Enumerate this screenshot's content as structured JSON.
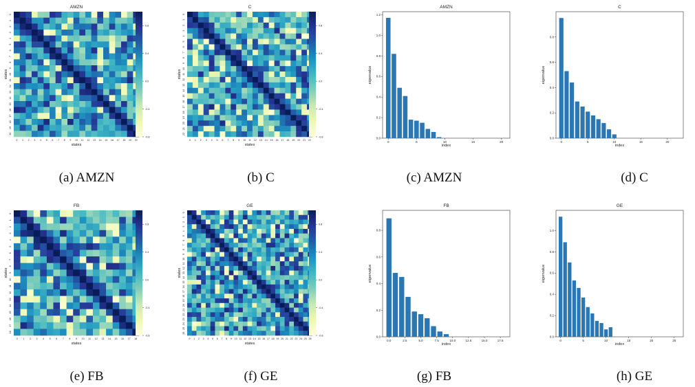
{
  "colors": {
    "bar": "#2a77b4",
    "axis": "#333333",
    "cmap": [
      "#ffffd9",
      "#edf8b1",
      "#c7e9b4",
      "#7fcdbb",
      "#41b6c4",
      "#1d91c0",
      "#225ea8",
      "#253494",
      "#081d58"
    ]
  },
  "heatmap_colorbar_ticks": [
    "0.8",
    "0.4",
    "0.0",
    "-0.4",
    "-0.8"
  ],
  "chart_data": [
    {
      "id": "a",
      "type": "heatmap",
      "title": "AMZN",
      "caption": "(a) AMZN",
      "xlabel": "states",
      "ylabel": "states",
      "n": 21,
      "xticks": [
        "0",
        "1",
        "2",
        "3",
        "4",
        "5",
        "6",
        "7",
        "8",
        "9",
        "10",
        "11",
        "12",
        "13",
        "14",
        "15",
        "16",
        "17",
        "18",
        "19",
        "20"
      ],
      "yticks": [
        "0",
        "1",
        "2",
        "3",
        "4",
        "5",
        "6",
        "7",
        "8",
        "9",
        "10",
        "11",
        "12",
        "13",
        "14",
        "15",
        "16",
        "17",
        "18",
        "19",
        "20"
      ],
      "vmin": -0.8,
      "vmax": 1.0,
      "seed": 11
    },
    {
      "id": "b",
      "type": "heatmap",
      "title": "C",
      "caption": "(b) C",
      "xlabel": "states",
      "ylabel": "states",
      "n": 23,
      "xticks": [
        "0",
        "1",
        "2",
        "3",
        "4",
        "5",
        "6",
        "7",
        "8",
        "9",
        "10",
        "11",
        "12",
        "13",
        "14",
        "15",
        "16",
        "17",
        "18",
        "19",
        "20",
        "21",
        "22"
      ],
      "yticks": [
        "0",
        "1",
        "2",
        "3",
        "4",
        "5",
        "6",
        "7",
        "8",
        "9",
        "10",
        "11",
        "12",
        "13",
        "14",
        "15",
        "16",
        "17",
        "18",
        "19",
        "20",
        "21",
        "22"
      ],
      "vmin": -0.8,
      "vmax": 1.0,
      "seed": 23
    },
    {
      "id": "c",
      "type": "bar",
      "title": "AMZN",
      "caption": "(c) AMZN",
      "xlabel": "index",
      "ylabel": "eigenvalue",
      "values": [
        1.17,
        0.82,
        0.49,
        0.41,
        0.18,
        0.17,
        0.15,
        0.09,
        0.06,
        0.01,
        0.0
      ],
      "xlim": [
        -1,
        21.5
      ],
      "ylim": [
        0,
        1.23
      ],
      "xticks": [
        0,
        5,
        10,
        15,
        20
      ],
      "xtick_labels": [
        "0",
        "5",
        "10",
        "15",
        "20"
      ],
      "yticks": [
        0,
        0.2,
        0.4,
        0.6,
        0.8,
        1.0,
        1.2
      ],
      "ytick_labels": [
        "0.0",
        "0.2",
        "0.4",
        "0.6",
        "0.8",
        "1.0",
        "1.2"
      ]
    },
    {
      "id": "d",
      "type": "bar",
      "title": "C",
      "caption": "(d) C",
      "xlabel": "index",
      "ylabel": "eigenvalue",
      "values": [
        0.95,
        0.53,
        0.44,
        0.29,
        0.25,
        0.21,
        0.18,
        0.15,
        0.12,
        0.07,
        0.03
      ],
      "xlim": [
        -1,
        23
      ],
      "ylim": [
        0,
        1.0
      ],
      "xticks": [
        0,
        5,
        10,
        15,
        20
      ],
      "xtick_labels": [
        "0",
        "5",
        "10",
        "15",
        "20"
      ],
      "yticks": [
        0,
        0.2,
        0.4,
        0.6,
        0.8
      ],
      "ytick_labels": [
        "0.0",
        "0.2",
        "0.4",
        "0.6",
        "0.8"
      ]
    },
    {
      "id": "e",
      "type": "heatmap",
      "title": "FB",
      "caption": "(e) FB",
      "xlabel": "states",
      "ylabel": "states",
      "n": 19,
      "xticks": [
        "0",
        "1",
        "2",
        "3",
        "4",
        "5",
        "6",
        "7",
        "8",
        "9",
        "10",
        "11",
        "12",
        "13",
        "14",
        "15",
        "16",
        "17",
        "18"
      ],
      "yticks": [
        "0",
        "1",
        "2",
        "3",
        "4",
        "5",
        "6",
        "7",
        "8",
        "9",
        "10",
        "11",
        "12",
        "13",
        "14",
        "15",
        "16",
        "17",
        "18"
      ],
      "vmin": -0.8,
      "vmax": 1.0,
      "seed": 37
    },
    {
      "id": "f",
      "type": "heatmap",
      "title": "GE",
      "caption": "(f) GE",
      "xlabel": "states",
      "ylabel": "states",
      "n": 27,
      "xticks": [
        "0",
        "1",
        "2",
        "3",
        "4",
        "5",
        "6",
        "7",
        "8",
        "9",
        "10",
        "11",
        "12",
        "13",
        "14",
        "15",
        "16",
        "17",
        "18",
        "19",
        "20",
        "21",
        "22",
        "23",
        "24",
        "25",
        "26"
      ],
      "yticks": [
        "0",
        "1",
        "2",
        "3",
        "4",
        "5",
        "6",
        "7",
        "8",
        "9",
        "10",
        "11",
        "12",
        "13",
        "14",
        "15",
        "16",
        "17",
        "18",
        "19",
        "20",
        "21",
        "22",
        "23",
        "24",
        "25",
        "26"
      ],
      "vmin": -0.8,
      "vmax": 1.0,
      "seed": 53
    },
    {
      "id": "g",
      "type": "bar",
      "title": "FB",
      "caption": "(g) FB",
      "xlabel": "index",
      "ylabel": "eigenvalue",
      "values": [
        0.89,
        0.48,
        0.45,
        0.3,
        0.19,
        0.17,
        0.14,
        0.08,
        0.04,
        0.02,
        0.0
      ],
      "xlim": [
        -1,
        19
      ],
      "ylim": [
        0,
        0.95
      ],
      "xticks": [
        0,
        2.5,
        5,
        7.5,
        10,
        12.5,
        15,
        17.5
      ],
      "xtick_labels": [
        "0.0",
        "2.5",
        "5.0",
        "7.5",
        "10.0",
        "12.5",
        "15.0",
        "17.5"
      ],
      "yticks": [
        0,
        0.2,
        0.4,
        0.6,
        0.8
      ],
      "ytick_labels": [
        "0.0",
        "0.2",
        "0.4",
        "0.6",
        "0.8"
      ]
    },
    {
      "id": "h",
      "type": "bar",
      "title": "GE",
      "caption": "(h) GE",
      "xlabel": "index",
      "ylabel": "eigenvalue",
      "values": [
        1.13,
        0.89,
        0.7,
        0.53,
        0.46,
        0.37,
        0.28,
        0.22,
        0.15,
        0.13,
        0.07,
        0.09
      ],
      "xlim": [
        -1,
        27
      ],
      "ylim": [
        0,
        1.19
      ],
      "xticks": [
        0,
        5,
        10,
        15,
        20,
        25
      ],
      "xtick_labels": [
        "0",
        "5",
        "10",
        "15",
        "20",
        "25"
      ],
      "yticks": [
        0,
        0.2,
        0.4,
        0.6,
        0.8,
        1.0
      ],
      "ytick_labels": [
        "0.0",
        "0.2",
        "0.4",
        "0.6",
        "0.8",
        "1.0"
      ]
    }
  ]
}
